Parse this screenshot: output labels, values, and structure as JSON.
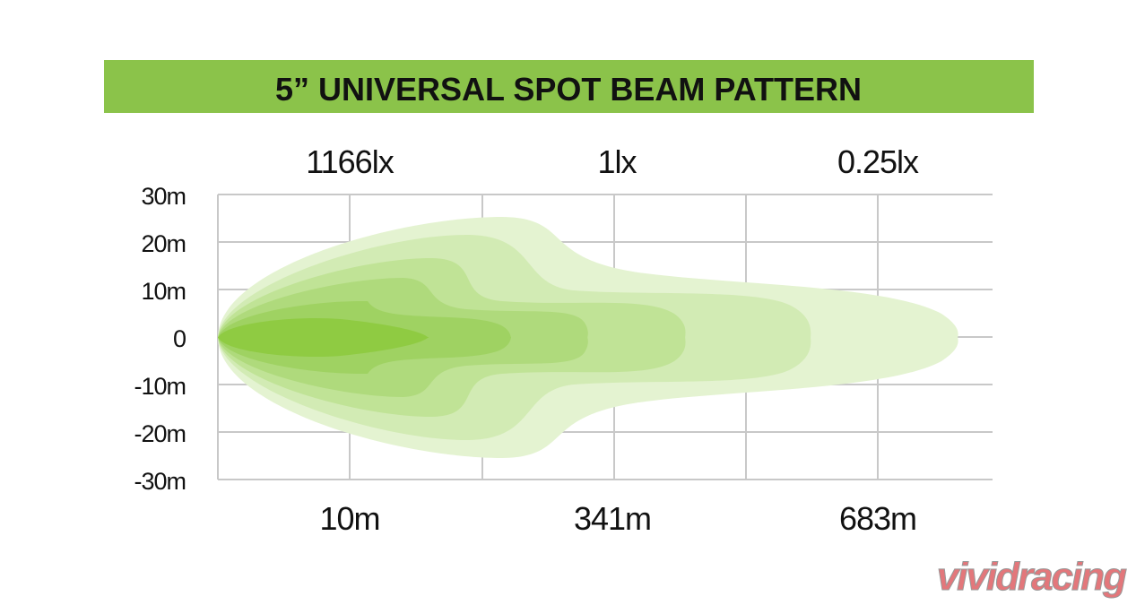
{
  "title": "5” UNIVERSAL SPOT BEAM PATTERN",
  "y_labels": [
    "30m",
    "20m",
    "10m",
    "0",
    "-10m",
    "-20m",
    "-30m"
  ],
  "lux_labels": [
    "1166lx",
    "1lx",
    "0.25lx"
  ],
  "distance_labels": [
    "10m",
    "341m",
    "683m"
  ],
  "watermark": "vividracing"
}
